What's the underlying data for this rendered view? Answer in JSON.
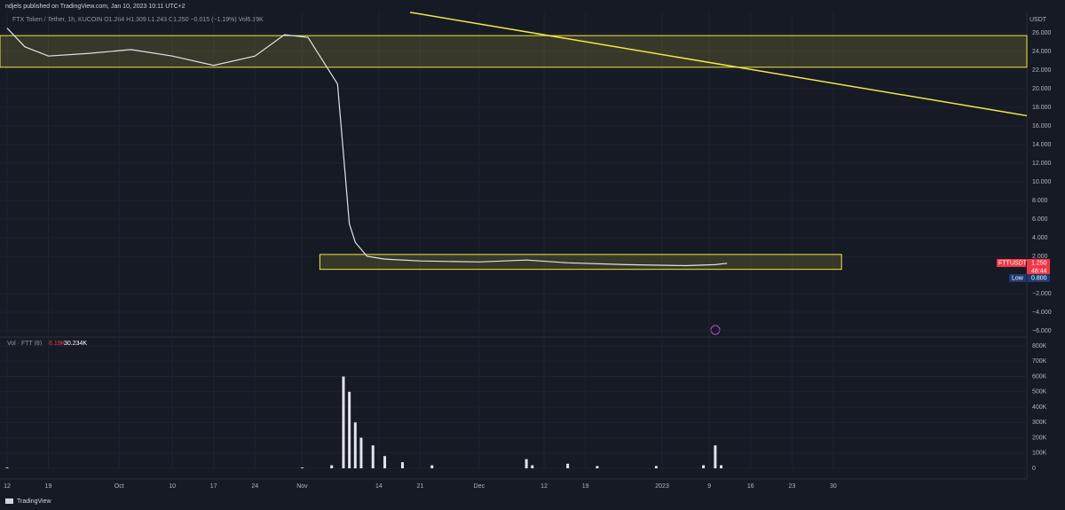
{
  "header": {
    "published": "ndjels published on TradingView.com, Jan 10, 2023 10:11 UTC+2",
    "symbol": "FTX Token / Tether, 1h, KUCOIN  O1.264  H1.309  L1.243  C1.250  −0.015 (−1.19%)  Vol6.19K"
  },
  "currency": "USDT",
  "volume_legend": {
    "name": "Vol · FTT (8)",
    "value": "6.19K",
    "ma": "30.234K"
  },
  "badges": {
    "symbol": "FTTUSDT",
    "last": "1.250",
    "countdown": "48:44",
    "low_label": "Low",
    "low": "0.800"
  },
  "footer": {
    "brand": "TradingView"
  },
  "chart_data": [
    {
      "type": "line",
      "color": "#e0e3eb",
      "x": [
        0,
        3,
        7,
        14,
        21,
        28,
        35,
        42,
        47,
        51,
        54,
        56,
        57,
        58,
        59,
        61,
        64,
        70,
        80,
        88,
        95,
        105,
        115,
        120,
        122
      ],
      "values": [
        26.5,
        24.5,
        23.5,
        23.8,
        24.2,
        23.5,
        22.5,
        23.5,
        25.8,
        25.5,
        22.5,
        20.5,
        13,
        5.5,
        3.5,
        2.0,
        1.7,
        1.5,
        1.4,
        1.6,
        1.3,
        1.1,
        1.0,
        1.1,
        1.25
      ],
      "xlim": [
        -1.2,
        172.8
      ],
      "ylim": [
        -6.48,
        28.19
      ],
      "yticks": [
        {
          "value": 26,
          "label": "26.000"
        },
        {
          "value": 24,
          "label": "24.000"
        },
        {
          "value": 22,
          "label": "22.000"
        },
        {
          "value": 20,
          "label": "20.000"
        },
        {
          "value": 18,
          "label": "18.000"
        },
        {
          "value": 16,
          "label": "16.000"
        },
        {
          "value": 14,
          "label": "14.000"
        },
        {
          "value": 12,
          "label": "12.000"
        },
        {
          "value": 10,
          "label": "10.000"
        },
        {
          "value": 8,
          "label": "8.000"
        },
        {
          "value": 6,
          "label": "6.000"
        },
        {
          "value": 4,
          "label": "4.000"
        },
        {
          "value": 2,
          "label": "2.000"
        },
        {
          "value": -2,
          "label": "−2.000"
        },
        {
          "value": -4,
          "label": "−4.000"
        },
        {
          "value": -6,
          "label": "−6.000"
        }
      ],
      "xticks": [
        {
          "value": 0,
          "label": "12"
        },
        {
          "value": 7,
          "label": "19"
        },
        {
          "value": 19,
          "label": "Oct"
        },
        {
          "value": 28,
          "label": "10"
        },
        {
          "value": 35,
          "label": "17"
        },
        {
          "value": 42,
          "label": "24"
        },
        {
          "value": 50,
          "label": "Nov"
        },
        {
          "value": 63,
          "label": "14"
        },
        {
          "value": 70,
          "label": "21"
        },
        {
          "value": 80,
          "label": "Dec"
        },
        {
          "value": 91,
          "label": "12"
        },
        {
          "value": 98,
          "label": "19"
        },
        {
          "value": 111,
          "label": "2023"
        },
        {
          "value": 119,
          "label": "9"
        },
        {
          "value": 126,
          "label": "16"
        },
        {
          "value": 133,
          "label": "23"
        },
        {
          "value": 140,
          "label": "30"
        }
      ],
      "zones": [
        {
          "x": [
            -1.2,
            172.8
          ],
          "y": [
            22.3,
            25.7
          ],
          "color": "#f5e642"
        },
        {
          "x": [
            53,
            141.4
          ],
          "y": [
            0.6,
            2.2
          ],
          "color": "#f5e642"
        }
      ],
      "trendline": {
        "x": [
          68.3,
          172.8
        ],
        "y": [
          28.2,
          17.1
        ],
        "color": "#f5e642"
      }
    },
    {
      "type": "bar",
      "color": "#e0e3eb",
      "x": [
        0,
        50,
        55,
        57,
        58,
        59,
        60,
        62,
        64,
        67,
        72,
        88,
        89,
        95,
        100,
        110,
        118,
        120,
        121
      ],
      "values": [
        5000,
        5000,
        20000,
        600000,
        500000,
        300000,
        200000,
        150000,
        80000,
        40000,
        20000,
        60000,
        20000,
        30000,
        15000,
        15000,
        20000,
        150000,
        20000
      ],
      "ylim": [
        0,
        858000
      ],
      "yticks": [
        {
          "value": 800000,
          "label": "800K"
        },
        {
          "value": 700000,
          "label": "700K"
        },
        {
          "value": 600000,
          "label": "600K"
        },
        {
          "value": 500000,
          "label": "500K"
        },
        {
          "value": 400000,
          "label": "400K"
        },
        {
          "value": 300000,
          "label": "300K"
        },
        {
          "value": 200000,
          "label": "200K"
        },
        {
          "value": 100000,
          "label": "100K"
        },
        {
          "value": 0,
          "label": "0"
        }
      ]
    }
  ]
}
